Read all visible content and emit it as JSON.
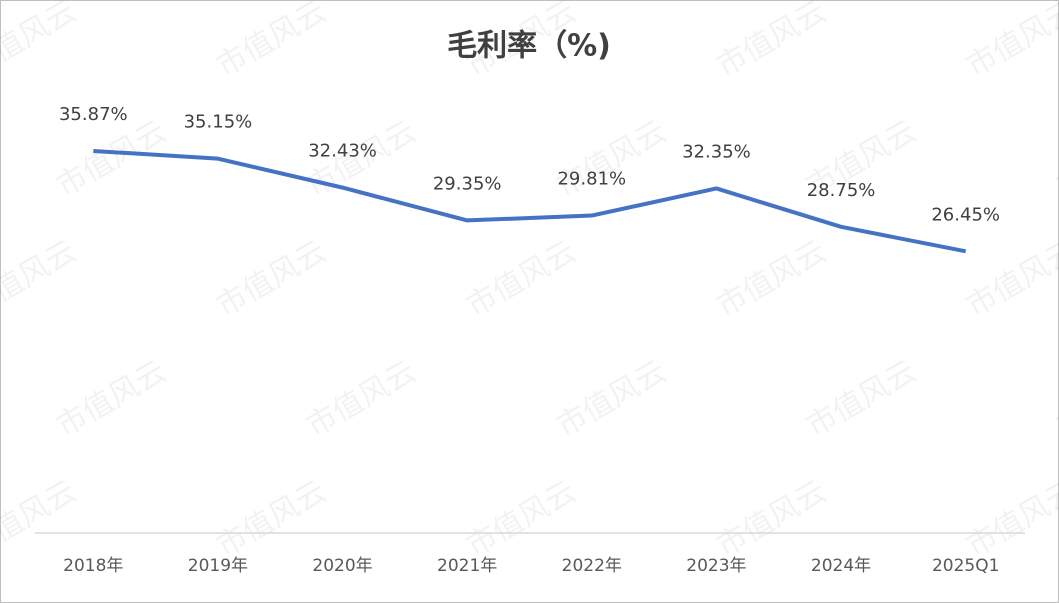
{
  "chart_data": {
    "type": "line",
    "title": "毛利率（%)",
    "categories": [
      "2018年",
      "2019年",
      "2020年",
      "2021年",
      "2022年",
      "2023年",
      "2024年",
      "2025Q1"
    ],
    "series": [
      {
        "name": "毛利率",
        "color": "#4472c4",
        "values": [
          35.87,
          35.15,
          32.43,
          29.35,
          29.81,
          32.35,
          28.75,
          26.45
        ],
        "value_labels": [
          "35.87%",
          "35.15%",
          "32.43%",
          "29.35%",
          "29.81%",
          "32.35%",
          "28.75%",
          "26.45%"
        ]
      }
    ],
    "ylim": [
      0,
      40
    ],
    "grid": false,
    "legend": false,
    "watermark": "市值风云"
  }
}
